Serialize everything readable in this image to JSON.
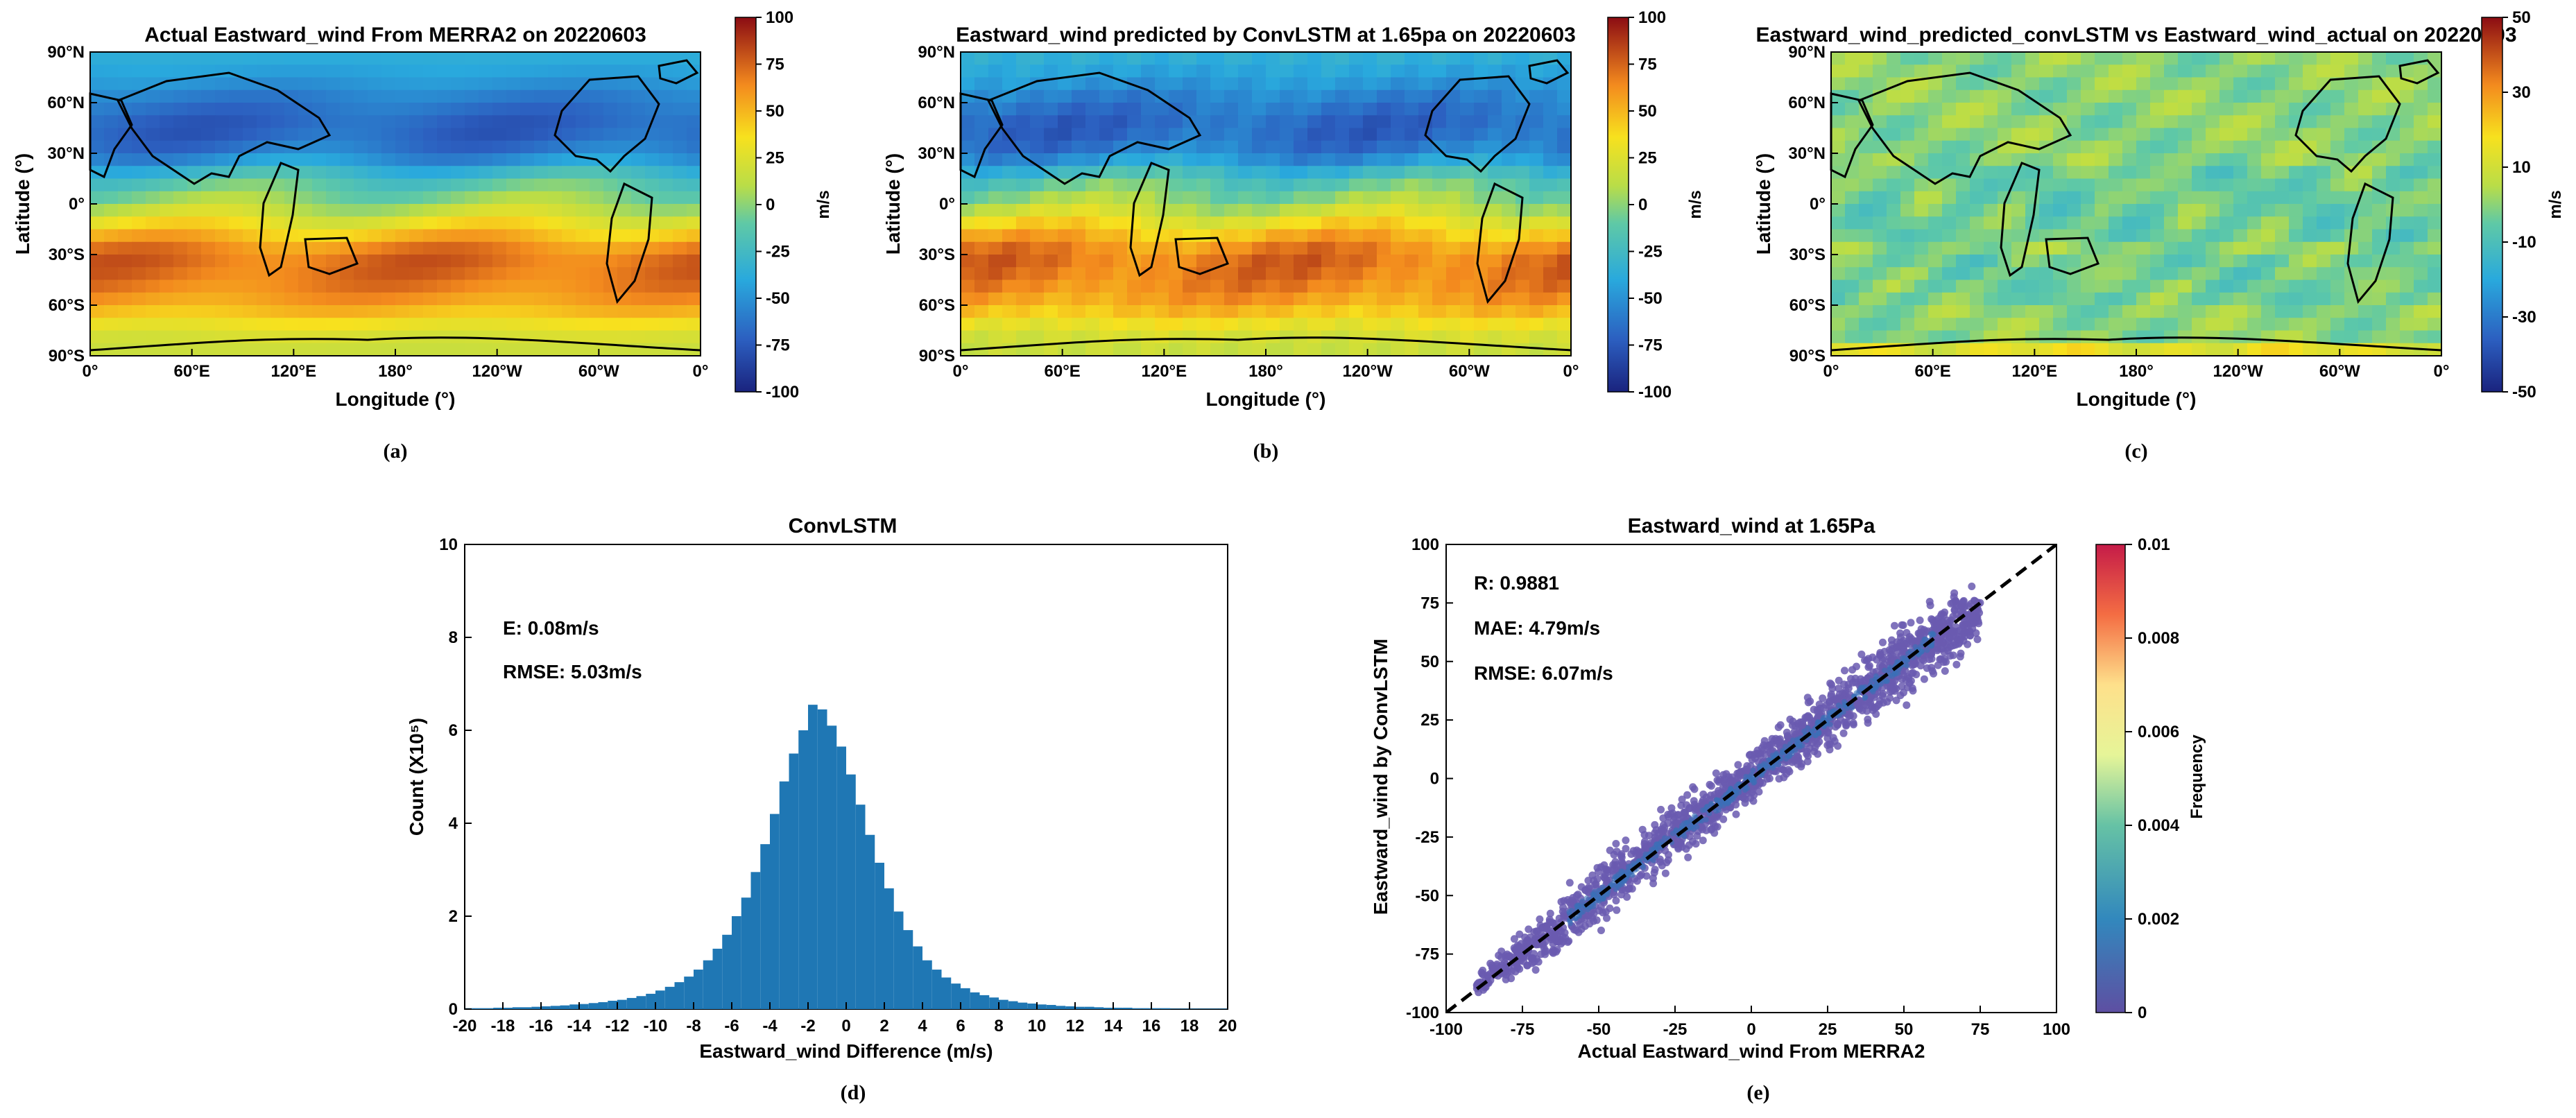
{
  "colors": {
    "histogram_bar": "#1f77b4",
    "scatter_point": "#6a5bb0",
    "identity_line": "#000000",
    "land_outline": "#000000"
  },
  "panels": {
    "a": {
      "caption": "(a)",
      "xlabel": "Longitude (°)",
      "ylabel": "Latitude (°)",
      "colorbar_label": "m/s"
    },
    "b": {
      "caption": "(b)",
      "xlabel": "Longitude (°)",
      "ylabel": "Latitude (°)",
      "colorbar_label": "m/s"
    },
    "c": {
      "caption": "(c)",
      "xlabel": "Longitude (°)",
      "ylabel": "Latitude (°)",
      "colorbar_label": "m/s"
    },
    "d": {
      "caption": "(d)",
      "xlabel": "Eastward_wind Difference (m/s)",
      "ylabel": "Count (X10⁵)",
      "stat_mean": "E: 0.08m/s",
      "stat_rmse": "RMSE: 5.03m/s"
    },
    "e": {
      "caption": "(e)",
      "xlabel": "Actual Eastward_wind From MERRA2",
      "ylabel": "Eastward_wind by ConvLSTM",
      "colorbar_label": "Frequency",
      "stat_r": "R: 0.9881",
      "stat_mae": "MAE: 4.79m/s",
      "stat_rmse": "RMSE: 6.07m/s"
    }
  },
  "chart_data": [
    {
      "type": "heatmap",
      "title": "Actual Eastward_wind From MERRA2 on 20220603",
      "xlabel": "Longitude (°)",
      "ylabel": "Latitude (°)",
      "x_ticks": [
        "0°",
        "60°E",
        "120°E",
        "180°",
        "120°W",
        "60°W",
        "0°"
      ],
      "y_ticks": [
        "90°N",
        "60°N",
        "30°N",
        "0°",
        "30°S",
        "60°S",
        "90°S"
      ],
      "colorbar": {
        "label": "m/s",
        "ticks": [
          100,
          75,
          50,
          25,
          0,
          -25,
          -50,
          -75,
          -100
        ],
        "range": [
          -100,
          100
        ]
      },
      "zonal_mean_profile": {
        "lat": [
          90,
          75,
          60,
          45,
          30,
          15,
          0,
          -15,
          -30,
          -45,
          -60,
          -75,
          -90
        ],
        "u": [
          -35,
          -45,
          -62,
          -72,
          -60,
          -18,
          5,
          40,
          72,
          70,
          55,
          25,
          15
        ]
      }
    },
    {
      "type": "heatmap",
      "title": "Eastward_wind predicted by ConvLSTM at 1.65pa on 20220603",
      "xlabel": "Longitude (°)",
      "ylabel": "Latitude (°)",
      "x_ticks": [
        "0°",
        "60°E",
        "120°E",
        "180°",
        "120°W",
        "60°W",
        "0°"
      ],
      "y_ticks": [
        "90°N",
        "60°N",
        "30°N",
        "0°",
        "30°S",
        "60°S",
        "90°S"
      ],
      "colorbar": {
        "label": "m/s",
        "ticks": [
          100,
          75,
          50,
          25,
          0,
          -25,
          -50,
          -75,
          -100
        ],
        "range": [
          -100,
          100
        ]
      },
      "zonal_mean_profile": {
        "lat": [
          90,
          75,
          60,
          45,
          30,
          15,
          0,
          -15,
          -30,
          -45,
          -60,
          -75,
          -90
        ],
        "u": [
          -33,
          -44,
          -60,
          -70,
          -58,
          -16,
          6,
          42,
          70,
          68,
          54,
          24,
          14
        ]
      }
    },
    {
      "type": "heatmap",
      "title": "Eastward_wind_predicted_convLSTM vs Eastward_wind_actual on 20220603",
      "xlabel": "Longitude (°)",
      "ylabel": "Latitude (°)",
      "x_ticks": [
        "0°",
        "60°E",
        "120°E",
        "180°",
        "120°W",
        "60°W",
        "0°"
      ],
      "y_ticks": [
        "90°N",
        "60°N",
        "30°N",
        "0°",
        "30°S",
        "60°S",
        "90°S"
      ],
      "colorbar": {
        "label": "m/s",
        "ticks": [
          50,
          30,
          10,
          -10,
          -30,
          -50
        ],
        "range": [
          -50,
          50
        ]
      }
    },
    {
      "type": "bar",
      "title": "ConvLSTM",
      "xlabel": "Eastward_wind Difference (m/s)",
      "ylabel": "Count (X10⁵)",
      "xlim": [
        -20,
        20
      ],
      "ylim": [
        0,
        10
      ],
      "x_ticks": [
        -20,
        -18,
        -16,
        -14,
        -12,
        -10,
        -8,
        -6,
        -4,
        -2,
        0,
        2,
        4,
        6,
        8,
        10,
        12,
        14,
        16,
        18,
        20
      ],
      "y_ticks": [
        0,
        2,
        4,
        6,
        8,
        10
      ],
      "bin_width": 0.5,
      "bin_centers": [
        -19.75,
        -19.25,
        -18.75,
        -18.25,
        -17.75,
        -17.25,
        -16.75,
        -16.25,
        -15.75,
        -15.25,
        -14.75,
        -14.25,
        -13.75,
        -13.25,
        -12.75,
        -12.25,
        -11.75,
        -11.25,
        -10.75,
        -10.25,
        -9.75,
        -9.25,
        -8.75,
        -8.25,
        -7.75,
        -7.25,
        -6.75,
        -6.25,
        -5.75,
        -5.25,
        -4.75,
        -4.25,
        -3.75,
        -3.25,
        -2.75,
        -2.25,
        -1.75,
        -1.25,
        -0.75,
        -0.25,
        0.25,
        0.75,
        1.25,
        1.75,
        2.25,
        2.75,
        3.25,
        3.75,
        4.25,
        4.75,
        5.25,
        5.75,
        6.25,
        6.75,
        7.25,
        7.75,
        8.25,
        8.75,
        9.25,
        9.75,
        10.25,
        10.75,
        11.25,
        11.75,
        12.25,
        12.75,
        13.25,
        13.75,
        14.25,
        14.75,
        15.25,
        15.75,
        16.25,
        16.75,
        17.25,
        17.75,
        18.25,
        18.75,
        19.25,
        19.75
      ],
      "values": [
        0.02,
        0.02,
        0.02,
        0.03,
        0.03,
        0.04,
        0.04,
        0.05,
        0.06,
        0.07,
        0.08,
        0.1,
        0.11,
        0.13,
        0.15,
        0.18,
        0.2,
        0.24,
        0.28,
        0.33,
        0.4,
        0.48,
        0.58,
        0.7,
        0.85,
        1.05,
        1.3,
        1.6,
        2.0,
        2.4,
        2.95,
        3.55,
        4.2,
        4.9,
        5.5,
        6.0,
        6.55,
        6.45,
        6.1,
        5.65,
        5.05,
        4.4,
        3.75,
        3.15,
        2.6,
        2.1,
        1.7,
        1.35,
        1.05,
        0.85,
        0.68,
        0.55,
        0.45,
        0.36,
        0.3,
        0.25,
        0.2,
        0.17,
        0.14,
        0.12,
        0.1,
        0.09,
        0.07,
        0.06,
        0.05,
        0.05,
        0.04,
        0.03,
        0.03,
        0.03,
        0.02,
        0.02,
        0.02,
        0.02,
        0.01,
        0.01,
        0.01,
        0.01,
        0.01,
        0.01
      ],
      "annotations": [
        "E: 0.08m/s",
        "RMSE: 5.03m/s"
      ]
    },
    {
      "type": "scatter",
      "title": "Eastward_wind at 1.65Pa",
      "xlabel": "Actual Eastward_wind From MERRA2",
      "ylabel": "Eastward_wind by ConvLSTM",
      "xlim": [
        -100,
        100
      ],
      "ylim": [
        -100,
        100
      ],
      "x_ticks": [
        -100,
        -75,
        -50,
        -25,
        0,
        25,
        50,
        75,
        100
      ],
      "y_ticks": [
        -100,
        -75,
        -50,
        -25,
        0,
        25,
        50,
        75,
        100
      ],
      "identity_line": [
        [
          -100,
          -100
        ],
        [
          100,
          100
        ]
      ],
      "density_band": {
        "x": [
          -90,
          -75,
          -50,
          -25,
          0,
          25,
          50,
          75
        ],
        "y_center": [
          -88,
          -75,
          -49,
          -24,
          1,
          26,
          50,
          72
        ],
        "half_width": [
          3,
          6,
          10,
          9,
          7,
          9,
          12,
          8
        ]
      },
      "colorbar": {
        "label": "Frequency",
        "ticks": [
          0.01,
          0.008,
          0.006,
          0.004,
          0.002,
          0
        ],
        "range": [
          0,
          0.01
        ]
      },
      "annotations": [
        "R: 0.9881",
        "MAE: 4.79m/s",
        "RMSE: 6.07m/s"
      ]
    }
  ]
}
